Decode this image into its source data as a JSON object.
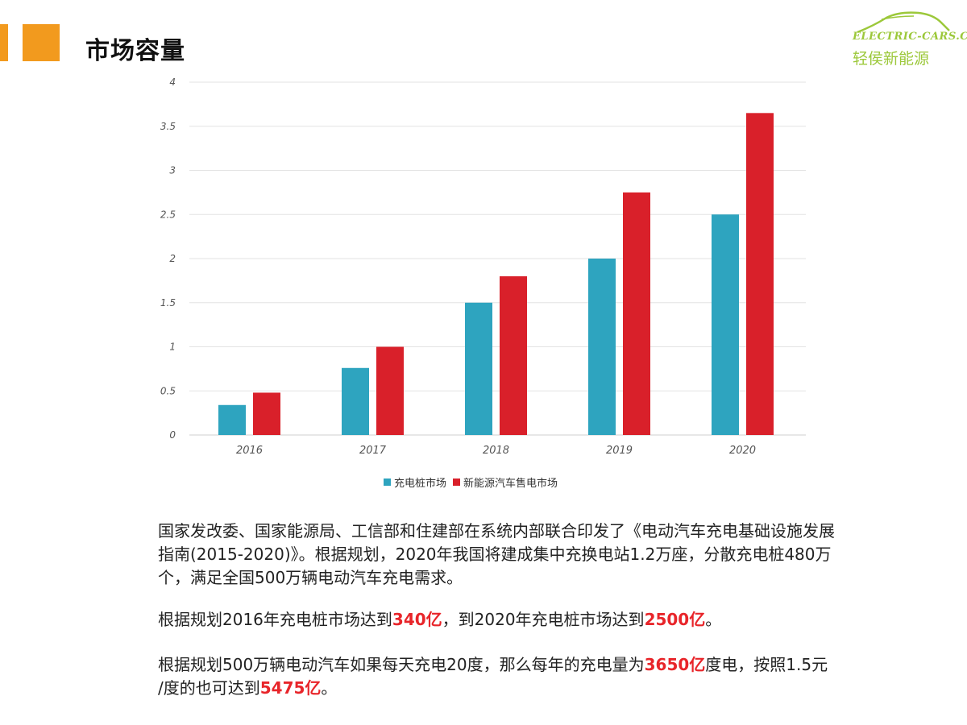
{
  "header": {
    "title": "市场容量"
  },
  "logo": {
    "en": "ELECTRIC-CARS.CN",
    "cn": "轻侯新能源"
  },
  "colors": {
    "accent": "#f29a1e",
    "series1": "#2ea4bf",
    "series2": "#d9202a",
    "highlight": "#e8252a",
    "logo": "#9cc83a"
  },
  "chart_data": {
    "type": "bar",
    "categories": [
      "2016",
      "2017",
      "2018",
      "2019",
      "2020"
    ],
    "series": [
      {
        "name": "充电桩市场",
        "values": [
          0.34,
          0.76,
          1.5,
          2.0,
          2.5
        ]
      },
      {
        "name": "新能源汽车售电市场",
        "values": [
          0.48,
          1.0,
          1.8,
          2.75,
          3.65
        ]
      }
    ],
    "yticks": [
      "0",
      "0.5",
      "1",
      "1.5",
      "2",
      "2.5",
      "3",
      "3.5",
      "4"
    ],
    "ylim": [
      0,
      4
    ],
    "title": "",
    "xlabel": "",
    "ylabel": "",
    "grid": true,
    "legend": "bottom"
  },
  "text": {
    "p1": "国家发改委、国家能源局、工信部和住建部在系统内部联合印发了《电动汽车充电基础设施发展指南(2015-2020)》。根据规划，2020年我国将建成集中充换电站1.2万座，分散充电桩480万个，满足全国500万辆电动汽车充电需求。",
    "p2_a": "根据规划2016年充电桩市场达到",
    "p2_h1": "340亿",
    "p2_b": "，到2020年充电桩市场达到",
    "p2_h2": "2500亿",
    "p2_c": "。",
    "p3_a": "根据规划500万辆电动汽车如果每天充电20度，那么每年的充电量为",
    "p3_h1": "3650亿",
    "p3_b": "度电，按照1.5元 /度的也可达到",
    "p3_h2": "5475亿",
    "p3_c": "。"
  }
}
